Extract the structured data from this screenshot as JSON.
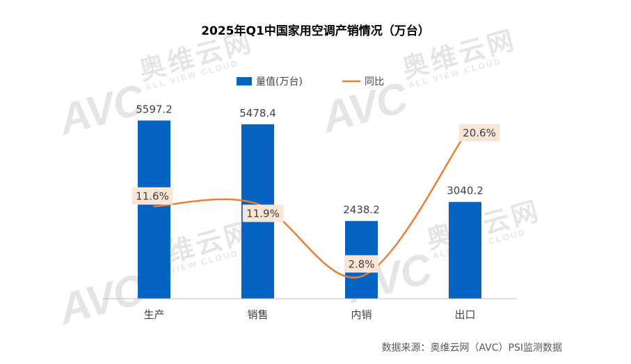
{
  "chart_data": {
    "type": "bar",
    "title": "2025年Q1中国家用空调产销情况（万台）",
    "categories": [
      "生产",
      "销售",
      "内销",
      "出口"
    ],
    "series": [
      {
        "name": "量值(万台)",
        "type": "bar",
        "axis": "primary",
        "values": [
          5597.2,
          5478.4,
          2438.2,
          3040.2
        ],
        "color": "#0563C1"
      },
      {
        "name": "同比",
        "type": "line",
        "axis": "secondary",
        "smooth": true,
        "values": [
          11.6,
          11.9,
          2.8,
          20.6
        ],
        "labels": [
          "11.6%",
          "11.9%",
          "2.8%",
          "20.6%"
        ],
        "color": "#ED7D31",
        "label_background": "#FBE5D6"
      }
    ],
    "ylim": [
      0,
      6000
    ],
    "y2lim": [
      0,
      24
    ],
    "grid": false,
    "legend": "top-center",
    "source": "数据来源：奥维云网（AVC）PSI监测数据"
  },
  "watermark": {
    "logo": "AVC",
    "name": "奥维云网",
    "tagline": "ALL VIEW CLOUD"
  }
}
